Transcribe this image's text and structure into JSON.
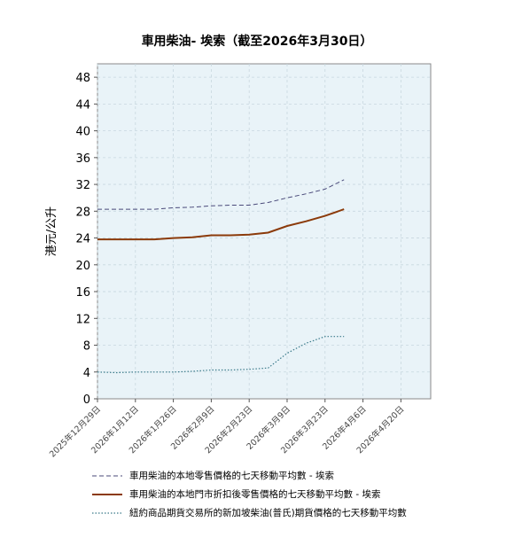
{
  "chart_data": {
    "type": "line",
    "title": "車用柴油- 埃索（截至2026年3月30日）",
    "ylabel": "港元/公升",
    "xlabel": "",
    "ylim": [
      0,
      50
    ],
    "yticks": [
      0,
      4,
      8,
      12,
      16,
      20,
      24,
      28,
      32,
      36,
      40,
      44,
      48
    ],
    "xlim": [
      "2025-12-29",
      "2026-05-01"
    ],
    "xticks": [
      "2025年12月29日",
      "2026年1月12日",
      "2026年1月26日",
      "2026年2月9日",
      "2026年2月23日",
      "2026年3月9日",
      "2026年3月23日",
      "2026年4月6日",
      "2026年4月20日"
    ],
    "grid": true,
    "legend_position": "bottom",
    "series": [
      {
        "name": "車用柴油的本地零售價格的七天移動平均數 - 埃索",
        "color": "#4a4a7a",
        "style": "dashed",
        "points": [
          [
            "2025-12-29",
            28.3
          ],
          [
            "2026-01-05",
            28.3
          ],
          [
            "2026-01-12",
            28.3
          ],
          [
            "2026-01-19",
            28.3
          ],
          [
            "2026-01-26",
            28.5
          ],
          [
            "2026-02-02",
            28.6
          ],
          [
            "2026-02-09",
            28.8
          ],
          [
            "2026-02-16",
            28.9
          ],
          [
            "2026-02-23",
            28.9
          ],
          [
            "2026-03-02",
            29.3
          ],
          [
            "2026-03-09",
            30.0
          ],
          [
            "2026-03-16",
            30.6
          ],
          [
            "2026-03-23",
            31.3
          ],
          [
            "2026-03-30",
            32.7
          ]
        ]
      },
      {
        "name": "車用柴油的本地門市折扣後零售價格的七天移動平均數 - 埃索",
        "color": "#8b3a0a",
        "style": "solid",
        "points": [
          [
            "2025-12-29",
            23.8
          ],
          [
            "2026-01-05",
            23.8
          ],
          [
            "2026-01-12",
            23.8
          ],
          [
            "2026-01-19",
            23.8
          ],
          [
            "2026-01-26",
            24.0
          ],
          [
            "2026-02-02",
            24.1
          ],
          [
            "2026-02-09",
            24.4
          ],
          [
            "2026-02-16",
            24.4
          ],
          [
            "2026-02-23",
            24.5
          ],
          [
            "2026-03-02",
            24.8
          ],
          [
            "2026-03-09",
            25.8
          ],
          [
            "2026-03-16",
            26.5
          ],
          [
            "2026-03-23",
            27.3
          ],
          [
            "2026-03-30",
            28.3
          ]
        ]
      },
      {
        "name": "紐約商品期貨交易所的新加坡柴油(普氏)期貨價格的七天移動平均數",
        "color": "#3a7a8a",
        "style": "dotted",
        "points": [
          [
            "2025-12-29",
            4.0
          ],
          [
            "2026-01-05",
            3.9
          ],
          [
            "2026-01-12",
            4.0
          ],
          [
            "2026-01-19",
            4.0
          ],
          [
            "2026-01-26",
            4.0
          ],
          [
            "2026-02-02",
            4.1
          ],
          [
            "2026-02-09",
            4.3
          ],
          [
            "2026-02-16",
            4.3
          ],
          [
            "2026-02-23",
            4.4
          ],
          [
            "2026-03-02",
            4.6
          ],
          [
            "2026-03-09",
            6.8
          ],
          [
            "2026-03-16",
            8.3
          ],
          [
            "2026-03-23",
            9.3
          ],
          [
            "2026-03-30",
            9.3
          ]
        ]
      }
    ]
  }
}
